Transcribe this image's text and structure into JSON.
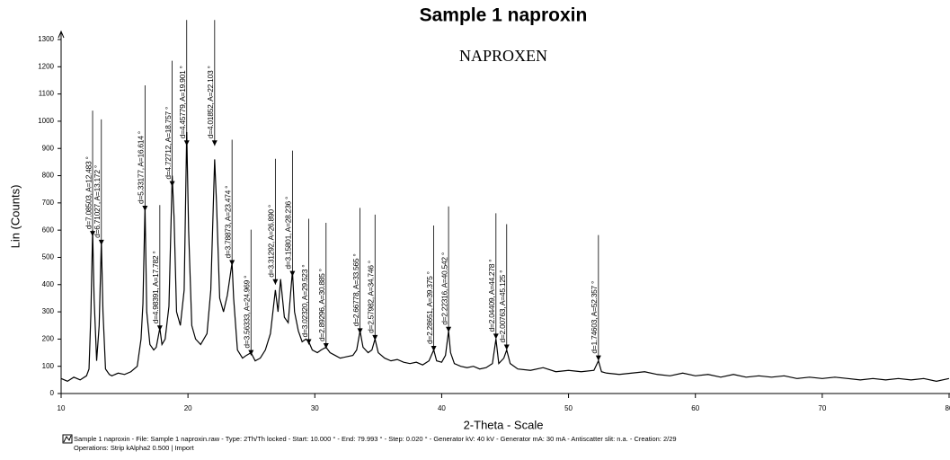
{
  "chart_data": {
    "type": "line",
    "title": "Sample 1 naproxin",
    "subtitle": "NAPROXEN",
    "x_label": "2-Theta - Scale",
    "y_label": "Lin (Counts)",
    "footer": [
      "Sample 1 naproxin - File: Sample 1 naproxin.raw - Type: 2Th/Th locked - Start: 10.000 ° - End: 79.993 ° - Step: 0.020 ° - Generator kV: 40 kV - Generator mA: 30 mA - Antiscatter slit: n.a. - Creation: 2/29",
      "Operations: Strip kAlpha2 0.500 | Import"
    ],
    "xlim": [
      10,
      80
    ],
    "ylim": [
      0,
      1300
    ],
    "xticks": [
      10,
      20,
      30,
      40,
      50,
      60,
      70,
      80
    ],
    "yticks": [
      0,
      100,
      200,
      300,
      400,
      500,
      600,
      700,
      800,
      900,
      1000,
      1100,
      1200,
      1300
    ],
    "x": [
      10,
      10.5,
      11,
      11.5,
      12,
      12.2,
      12.35,
      12.483,
      12.6,
      12.8,
      13.0,
      13.172,
      13.3,
      13.5,
      13.8,
      14,
      14.5,
      15,
      15.5,
      16,
      16.3,
      16.45,
      16.614,
      16.75,
      17,
      17.3,
      17.5,
      17.782,
      17.95,
      18.2,
      18.5,
      18.757,
      18.9,
      19.1,
      19.4,
      19.7,
      19.901,
      20.05,
      20.3,
      20.6,
      21,
      21.5,
      21.8,
      22.103,
      22.25,
      22.5,
      22.8,
      23.1,
      23.474,
      23.6,
      23.9,
      24.3,
      24.6,
      24.969,
      25.3,
      25.7,
      26.1,
      26.5,
      26.89,
      27.1,
      27.3,
      27.6,
      27.9,
      28.236,
      28.4,
      28.7,
      29,
      29.3,
      29.523,
      29.8,
      30.2,
      30.5,
      30.885,
      31.2,
      31.6,
      32,
      32.5,
      33,
      33.3,
      33.565,
      33.8,
      34.2,
      34.5,
      34.746,
      35,
      35.5,
      36,
      36.5,
      37,
      37.5,
      38,
      38.5,
      39,
      39.375,
      39.6,
      40,
      40.3,
      40.542,
      40.7,
      41,
      41.5,
      42,
      42.5,
      43,
      43.5,
      44,
      44.278,
      44.5,
      44.9,
      45.125,
      45.4,
      46,
      47,
      48,
      49,
      50,
      51,
      52,
      52.357,
      52.6,
      53,
      54,
      55,
      56,
      57,
      58,
      59,
      60,
      61,
      62,
      63,
      64,
      65,
      66,
      67,
      68,
      69,
      70,
      71,
      72,
      73,
      74,
      75,
      76,
      77,
      78,
      79,
      79.993
    ],
    "series": [
      {
        "name": "Sample 1 naproxin",
        "color": "#000000",
        "values": [
          55,
          45,
          60,
          50,
          65,
          90,
          300,
          600,
          350,
          120,
          250,
          560,
          300,
          90,
          70,
          65,
          75,
          70,
          80,
          100,
          200,
          330,
          690,
          300,
          180,
          160,
          170,
          240,
          180,
          200,
          320,
          800,
          650,
          300,
          250,
          380,
          960,
          600,
          250,
          200,
          180,
          220,
          380,
          860,
          700,
          350,
          300,
          360,
          480,
          350,
          160,
          130,
          140,
          150,
          120,
          130,
          160,
          220,
          380,
          300,
          420,
          280,
          260,
          450,
          300,
          230,
          190,
          200,
          190,
          160,
          150,
          160,
          170,
          150,
          140,
          130,
          135,
          140,
          160,
          230,
          170,
          150,
          160,
          200,
          150,
          130,
          120,
          125,
          115,
          110,
          115,
          105,
          120,
          160,
          120,
          115,
          140,
          230,
          150,
          110,
          100,
          95,
          100,
          90,
          95,
          110,
          200,
          110,
          130,
          160,
          110,
          90,
          85,
          95,
          80,
          85,
          80,
          85,
          120,
          80,
          75,
          70,
          75,
          80,
          70,
          65,
          75,
          65,
          70,
          60,
          70,
          60,
          65,
          60,
          65,
          55,
          60,
          55,
          60,
          55,
          50,
          55,
          50,
          55,
          50,
          55,
          45,
          55
        ]
      }
    ],
    "annotations": [
      {
        "label": "d=7.08503, A=12.483 °",
        "x": 12.483,
        "y": 577
      },
      {
        "label": "d=6.71027, A=13.172 °",
        "x": 13.172,
        "y": 545
      },
      {
        "label": "d=5.33177, A=16.614 °",
        "x": 16.614,
        "y": 670
      },
      {
        "label": "d=4.98391, A=17.782 °",
        "x": 17.782,
        "y": 230
      },
      {
        "label": "d=4.72712, A=18.757 °",
        "x": 18.757,
        "y": 760
      },
      {
        "label": "d=4.45779, A=19.901 °",
        "x": 19.901,
        "y": 910
      },
      {
        "label": "d=4.01852, A=22.103 °",
        "x": 22.103,
        "y": 910
      },
      {
        "label": "d=3.78873, A=23.474 °",
        "x": 23.474,
        "y": 470
      },
      {
        "label": "d=3.56333, A=24.969 °",
        "x": 24.969,
        "y": 140
      },
      {
        "label": "d=3.31292, A=26.890 °",
        "x": 26.89,
        "y": 400
      },
      {
        "label": "d=3.15801, A=28.236 °",
        "x": 28.236,
        "y": 430
      },
      {
        "label": "d=3.02320, A=29.523 °",
        "x": 29.523,
        "y": 180
      },
      {
        "label": "d=2.89296, A=30.885 °",
        "x": 30.885,
        "y": 165
      },
      {
        "label": "d=2.66778, A=33.565 °",
        "x": 33.565,
        "y": 220
      },
      {
        "label": "d=2.57982, A=34.746 °",
        "x": 34.746,
        "y": 195
      },
      {
        "label": "d=2.28651, A=39.375 °",
        "x": 39.375,
        "y": 155
      },
      {
        "label": "d=2.22316, A=40.542 °",
        "x": 40.542,
        "y": 225
      },
      {
        "label": "d=2.04409, A=44.278 °",
        "x": 44.278,
        "y": 200
      },
      {
        "label": "d=2.00763, A=45.125 °",
        "x": 45.125,
        "y": 160
      },
      {
        "label": "d=1.74603, A=52.357 °",
        "x": 52.357,
        "y": 120
      }
    ]
  }
}
